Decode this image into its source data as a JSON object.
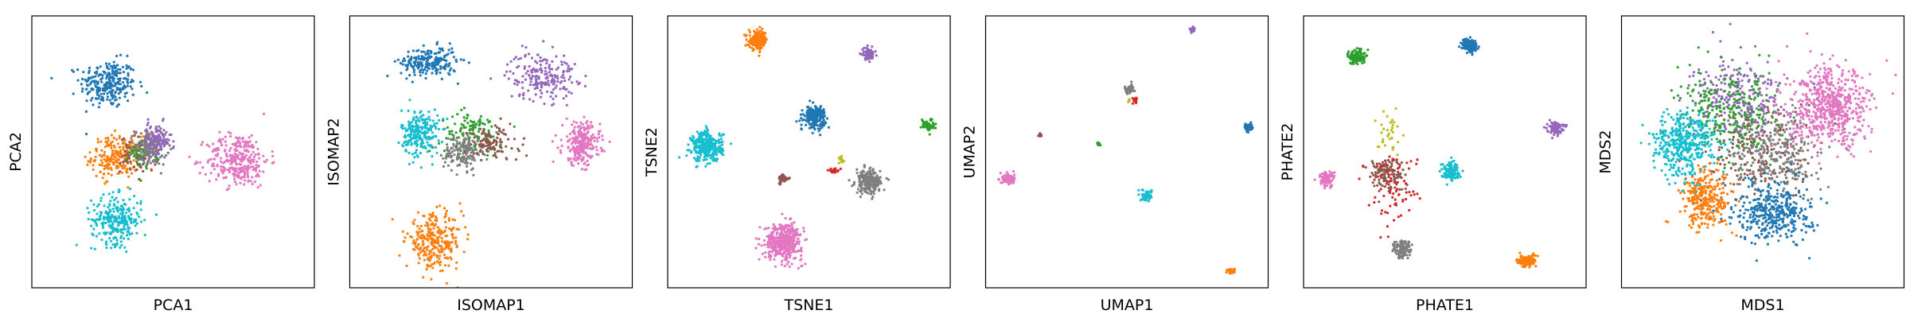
{
  "figure": {
    "palette": {
      "blue": "#1f77b4",
      "orange": "#ff7f0e",
      "green": "#2ca02c",
      "red": "#d62728",
      "purple": "#9467bd",
      "brown": "#8c564b",
      "pink": "#e377c2",
      "gray": "#7f7f7f",
      "olive": "#bcbd22",
      "cyan": "#17becf"
    }
  },
  "chart_data": [
    {
      "type": "scatter",
      "xlabel": "PCA1",
      "ylabel": "PCA2",
      "ticks": "none",
      "xlim": [
        0,
        100
      ],
      "ylim": [
        0,
        100
      ],
      "clusters": [
        {
          "color": "blue",
          "center": [
            27,
            75
          ],
          "spread": [
            9,
            8
          ],
          "points": 260
        },
        {
          "color": "orange",
          "center": [
            30,
            48
          ],
          "spread": [
            8,
            7
          ],
          "points": 220
        },
        {
          "color": "brown",
          "center": [
            38,
            49
          ],
          "spread": [
            6,
            6
          ],
          "points": 90
        },
        {
          "color": "green",
          "center": [
            40,
            50
          ],
          "spread": [
            5,
            5
          ],
          "points": 60
        },
        {
          "color": "gray",
          "center": [
            42,
            52
          ],
          "spread": [
            5,
            6
          ],
          "points": 110
        },
        {
          "color": "purple",
          "center": [
            44,
            54
          ],
          "spread": [
            5,
            6
          ],
          "points": 110
        },
        {
          "color": "pink",
          "center": [
            73,
            47
          ],
          "spread": [
            10,
            9
          ],
          "points": 300
        },
        {
          "color": "cyan",
          "center": [
            30,
            25
          ],
          "spread": [
            8,
            8
          ],
          "points": 260
        }
      ]
    },
    {
      "type": "scatter",
      "xlabel": "ISOMAP1",
      "ylabel": "ISOMAP2",
      "ticks": "none",
      "xlim": [
        0,
        100
      ],
      "ylim": [
        0,
        100
      ],
      "clusters": [
        {
          "color": "blue",
          "center": [
            28,
            83
          ],
          "spread": [
            9,
            5
          ],
          "points": 220
        },
        {
          "color": "purple",
          "center": [
            68,
            78
          ],
          "spread": [
            11,
            8
          ],
          "points": 200
        },
        {
          "color": "cyan",
          "center": [
            25,
            57
          ],
          "spread": [
            6,
            8
          ],
          "points": 230
        },
        {
          "color": "green",
          "center": [
            43,
            57
          ],
          "spread": [
            10,
            7
          ],
          "points": 110
        },
        {
          "color": "gray",
          "center": [
            40,
            50
          ],
          "spread": [
            6,
            6
          ],
          "points": 160
        },
        {
          "color": "brown",
          "center": [
            50,
            53
          ],
          "spread": [
            9,
            6
          ],
          "points": 110
        },
        {
          "color": "pink",
          "center": [
            82,
            53
          ],
          "spread": [
            6,
            7
          ],
          "points": 260
        },
        {
          "color": "orange",
          "center": [
            30,
            17
          ],
          "spread": [
            9,
            9
          ],
          "points": 280
        }
      ]
    },
    {
      "type": "scatter",
      "xlabel": "TSNE1",
      "ylabel": "TSNE2",
      "ticks": "none",
      "xlim": [
        0,
        100
      ],
      "ylim": [
        0,
        100
      ],
      "clusters": [
        {
          "color": "orange",
          "center": [
            32,
            91
          ],
          "spread": [
            3,
            3
          ],
          "points": 170
        },
        {
          "color": "purple",
          "center": [
            71,
            86
          ],
          "spread": [
            2,
            2
          ],
          "points": 70
        },
        {
          "color": "blue",
          "center": [
            52,
            63
          ],
          "spread": [
            3.5,
            3.5
          ],
          "points": 220
        },
        {
          "color": "green",
          "center": [
            92,
            60
          ],
          "spread": [
            2,
            2
          ],
          "points": 60
        },
        {
          "color": "cyan",
          "center": [
            14,
            52
          ],
          "spread": [
            5,
            5
          ],
          "points": 320
        },
        {
          "color": "olive",
          "center": [
            61,
            47
          ],
          "spread": [
            1.2,
            1.2
          ],
          "points": 12
        },
        {
          "color": "red",
          "center": [
            59,
            43
          ],
          "spread": [
            2,
            1
          ],
          "points": 20
        },
        {
          "color": "gray",
          "center": [
            71,
            39
          ],
          "spread": [
            4,
            4
          ],
          "points": 220
        },
        {
          "color": "brown",
          "center": [
            41,
            40
          ],
          "spread": [
            1.6,
            1.6
          ],
          "points": 40
        },
        {
          "color": "pink",
          "center": [
            41,
            17
          ],
          "spread": [
            6,
            6
          ],
          "points": 420
        }
      ]
    },
    {
      "type": "scatter",
      "xlabel": "UMAP1",
      "ylabel": "UMAP2",
      "ticks": "none",
      "xlim": [
        0,
        100
      ],
      "ylim": [
        0,
        100
      ],
      "clusters": [
        {
          "color": "purple",
          "center": [
            73,
            95
          ],
          "spread": [
            0.8,
            0.8
          ],
          "points": 30
        },
        {
          "color": "gray",
          "center": [
            51,
            73
          ],
          "spread": [
            1.5,
            1.5
          ],
          "points": 60
        },
        {
          "color": "red",
          "center": [
            53,
            69
          ],
          "spread": [
            0.8,
            1.2
          ],
          "points": 14
        },
        {
          "color": "olive",
          "center": [
            51,
            69
          ],
          "spread": [
            0.5,
            0.5
          ],
          "points": 6
        },
        {
          "color": "blue",
          "center": [
            93,
            59
          ],
          "spread": [
            1.2,
            1.2
          ],
          "points": 60
        },
        {
          "color": "brown",
          "center": [
            19,
            56
          ],
          "spread": [
            0.6,
            0.6
          ],
          "points": 10
        },
        {
          "color": "green",
          "center": [
            40,
            53
          ],
          "spread": [
            0.6,
            0.6
          ],
          "points": 14
        },
        {
          "color": "pink",
          "center": [
            8,
            40
          ],
          "spread": [
            2,
            2
          ],
          "points": 90
        },
        {
          "color": "cyan",
          "center": [
            57,
            34
          ],
          "spread": [
            1.6,
            1.6
          ],
          "points": 70
        },
        {
          "color": "orange",
          "center": [
            87,
            6
          ],
          "spread": [
            1.2,
            1
          ],
          "points": 45
        }
      ]
    },
    {
      "type": "scatter",
      "xlabel": "PHATE1",
      "ylabel": "PHATE2",
      "ticks": "none",
      "xlim": [
        0,
        100
      ],
      "ylim": [
        0,
        100
      ],
      "clusters": [
        {
          "color": "blue",
          "center": [
            59,
            89
          ],
          "spread": [
            2.5,
            2.5
          ],
          "points": 120
        },
        {
          "color": "green",
          "center": [
            19,
            85
          ],
          "spread": [
            2.5,
            2.5
          ],
          "points": 110
        },
        {
          "color": "purple",
          "center": [
            89,
            59
          ],
          "spread": [
            2.5,
            2
          ],
          "points": 90
        },
        {
          "color": "olive",
          "center": [
            30,
            57
          ],
          "spread": [
            4,
            7
          ],
          "points": 35
        },
        {
          "color": "cyan",
          "center": [
            52,
            43
          ],
          "spread": [
            3,
            3
          ],
          "points": 110
        },
        {
          "color": "brown",
          "center": [
            29,
            42
          ],
          "spread": [
            6,
            6
          ],
          "points": 120
        },
        {
          "color": "red",
          "center": [
            32,
            37
          ],
          "spread": [
            8,
            12
          ],
          "points": 70
        },
        {
          "color": "pink",
          "center": [
            8,
            40
          ],
          "spread": [
            2.5,
            2.5
          ],
          "points": 100
        },
        {
          "color": "gray",
          "center": [
            35,
            14
          ],
          "spread": [
            3,
            3
          ],
          "points": 120
        },
        {
          "color": "orange",
          "center": [
            79,
            10
          ],
          "spread": [
            3,
            2
          ],
          "points": 120
        }
      ]
    },
    {
      "type": "scatter",
      "xlabel": "MDS1",
      "ylabel": "MDS2",
      "ticks": "none",
      "xlim": [
        0,
        100
      ],
      "ylim": [
        0,
        100
      ],
      "clusters": [
        {
          "color": "brown",
          "center": [
            50,
            50
          ],
          "spread": [
            18,
            18
          ],
          "points": 220
        },
        {
          "color": "purple",
          "center": [
            42,
            70
          ],
          "spread": [
            15,
            13
          ],
          "points": 260
        },
        {
          "color": "green",
          "center": [
            38,
            64
          ],
          "spread": [
            16,
            14
          ],
          "points": 260
        },
        {
          "color": "gray",
          "center": [
            55,
            50
          ],
          "spread": [
            14,
            14
          ],
          "points": 260
        },
        {
          "color": "blue",
          "center": [
            54,
            28
          ],
          "spread": [
            12,
            10
          ],
          "points": 380
        },
        {
          "color": "orange",
          "center": [
            30,
            33
          ],
          "spread": [
            8,
            10
          ],
          "points": 300
        },
        {
          "color": "cyan",
          "center": [
            22,
            53
          ],
          "spread": [
            10,
            11
          ],
          "points": 420
        },
        {
          "color": "pink",
          "center": [
            74,
            66
          ],
          "spread": [
            13,
            13
          ],
          "points": 600
        }
      ]
    }
  ]
}
